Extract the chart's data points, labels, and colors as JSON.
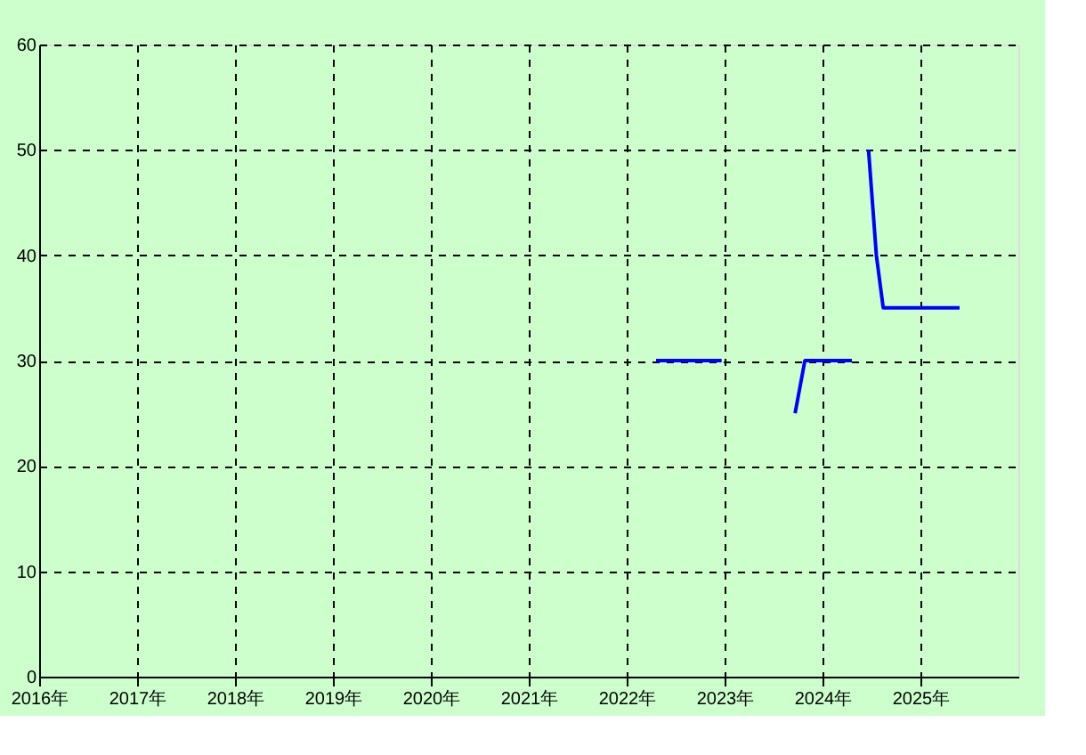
{
  "chart_data": {
    "type": "line",
    "x": [
      2022.3,
      2022.97,
      2023.4,
      2023.72,
      2023.82,
      2024.3,
      2024.4,
      2024.47,
      2024.55,
      2024.62,
      2025.4
    ],
    "series": [
      {
        "color": "#0000ff",
        "values": [
          30,
          30,
          null,
          25,
          30,
          30,
          null,
          50,
          40,
          35,
          35
        ]
      }
    ],
    "xlim": [
      2016,
      2026
    ],
    "xticks": [
      {
        "value": 2016,
        "label": "2016年"
      },
      {
        "value": 2017,
        "label": "2017年"
      },
      {
        "value": 2018,
        "label": "2018年"
      },
      {
        "value": 2019,
        "label": "2019年"
      },
      {
        "value": 2020,
        "label": "2020年"
      },
      {
        "value": 2021,
        "label": "2021年"
      },
      {
        "value": 2022,
        "label": "2022年"
      },
      {
        "value": 2023,
        "label": "2023年"
      },
      {
        "value": 2024,
        "label": "2024年"
      },
      {
        "value": 2025,
        "label": "2025年"
      }
    ],
    "ylim": [
      0,
      60
    ],
    "yticks": [
      0,
      10,
      20,
      30,
      40,
      50,
      60
    ],
    "grid": true,
    "marker": "none",
    "line_style": "solid"
  }
}
